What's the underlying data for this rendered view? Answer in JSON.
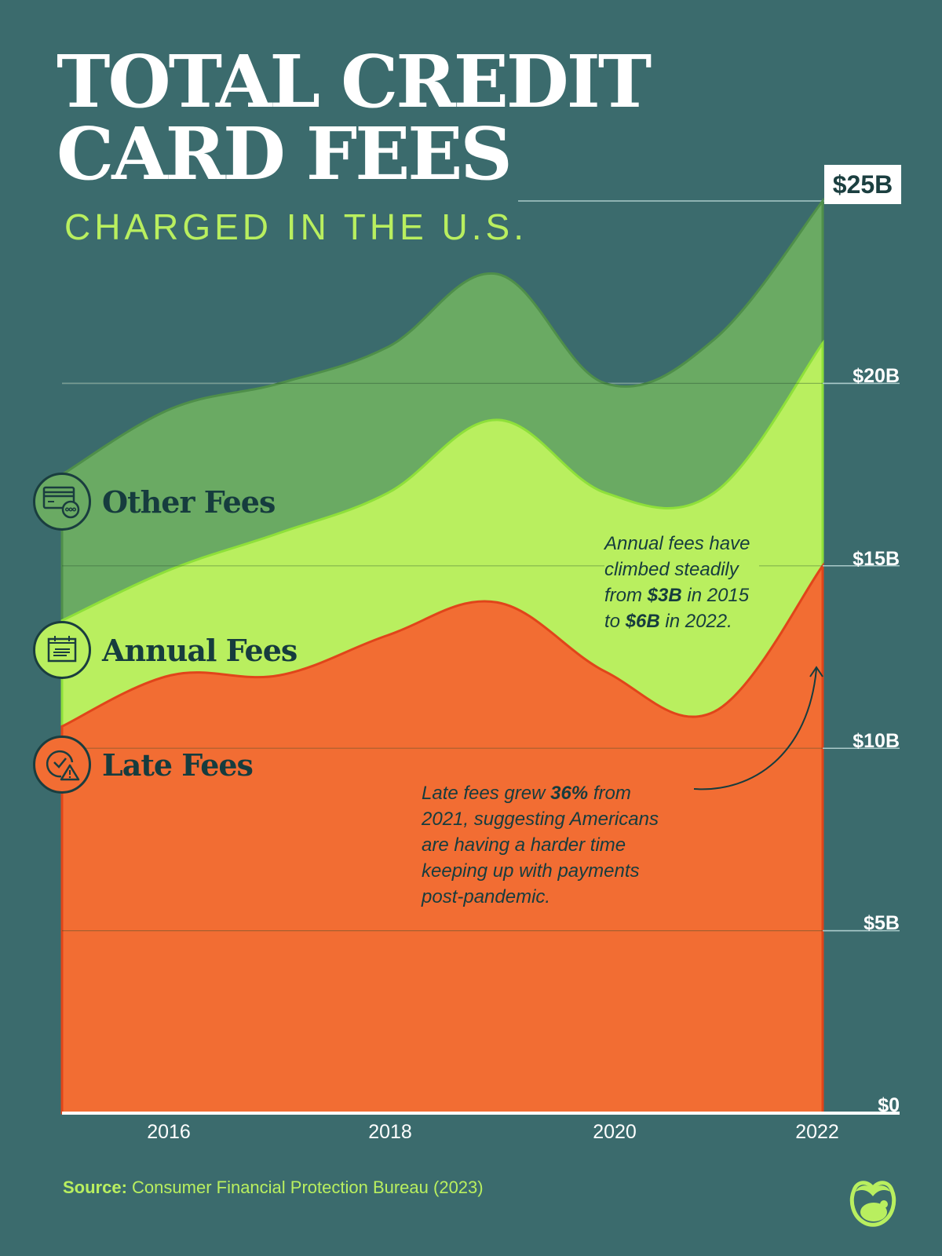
{
  "header": {
    "title_line1": "TOTAL CREDIT",
    "title_line2": "CARD FEES",
    "subtitle": "CHARGED IN THE U.S."
  },
  "legend": [
    {
      "label": "Other Fees",
      "icon": "credit-card-more-icon",
      "color": "#6aaa63"
    },
    {
      "label": "Annual Fees",
      "icon": "calendar-icon",
      "color": "#b9ef5f"
    },
    {
      "label": "Late Fees",
      "icon": "clock-warning-icon",
      "color": "#f26d33"
    }
  ],
  "y_axis": {
    "labels": [
      "$0",
      "$5B",
      "$10B",
      "$15B",
      "$20B",
      "$25B"
    ]
  },
  "x_axis": {
    "labels": [
      "2016",
      "2018",
      "2020",
      "2022"
    ]
  },
  "annotations": {
    "annual": {
      "line1": "Annual fees have",
      "line2": "climbed steadily",
      "line3_pre": "from ",
      "line3_bold": "$3B",
      "line3_post": " in 2015",
      "line4_pre": "to ",
      "line4_bold": "$6B",
      "line4_post": " in 2022."
    },
    "late": {
      "line1_pre": "Late fees grew ",
      "line1_bold": "36%",
      "line1_post": " from",
      "line2": "2021, suggesting Americans",
      "line3": "are having a harder time",
      "line4": "keeping up with payments",
      "line5": "post-pandemic."
    }
  },
  "footer": {
    "source_label": "Source:",
    "source_text": " Consumer Financial Protection Bureau (2023)"
  },
  "colors": {
    "background": "#3b6b6d",
    "other": "#6aaa63",
    "other_stroke": "#4f8f4a",
    "annual": "#b9ef5f",
    "annual_stroke": "#8ee03a",
    "late": "#f26d33",
    "late_stroke": "#e0451a",
    "accent_text": "#b9ef5f"
  },
  "chart_data": {
    "type": "area",
    "stacked": true,
    "title": "Total Credit Card Fees Charged in the U.S.",
    "subtitle": "Charged in the U.S.",
    "xlabel": "",
    "ylabel": "",
    "x": [
      2015,
      2016,
      2017,
      2018,
      2019,
      2020,
      2021,
      2022
    ],
    "series": [
      {
        "name": "Late Fees",
        "values": [
          10.6,
          12.0,
          12.0,
          13.1,
          14.0,
          12.1,
          11.0,
          15.0
        ]
      },
      {
        "name": "Annual Fees",
        "values": [
          2.9,
          2.9,
          3.9,
          3.9,
          5.0,
          4.9,
          6.0,
          6.1
        ]
      },
      {
        "name": "Other Fees",
        "values": [
          4.0,
          4.4,
          4.1,
          4.0,
          4.0,
          3.0,
          4.2,
          3.9
        ]
      }
    ],
    "totals": [
      17.5,
      19.3,
      20.0,
      21.0,
      23.0,
      20.0,
      21.2,
      25.0
    ],
    "ylim": [
      0,
      25
    ],
    "y_ticks": [
      0,
      5,
      10,
      15,
      20,
      25
    ],
    "y_tick_labels": [
      "$0",
      "$5B",
      "$10B",
      "$15B",
      "$20B",
      "$25B"
    ],
    "x_tick_labels": [
      "2016",
      "2018",
      "2020",
      "2022"
    ],
    "grid": true,
    "legend_position": "left-inline",
    "annotations": [
      "Annual fees have climbed steadily from $3B in 2015 to $6B in 2022.",
      "Late fees grew 36% from 2021, suggesting Americans are having a harder time keeping up with payments post-pandemic."
    ],
    "source": "Consumer Financial Protection Bureau (2023)"
  }
}
